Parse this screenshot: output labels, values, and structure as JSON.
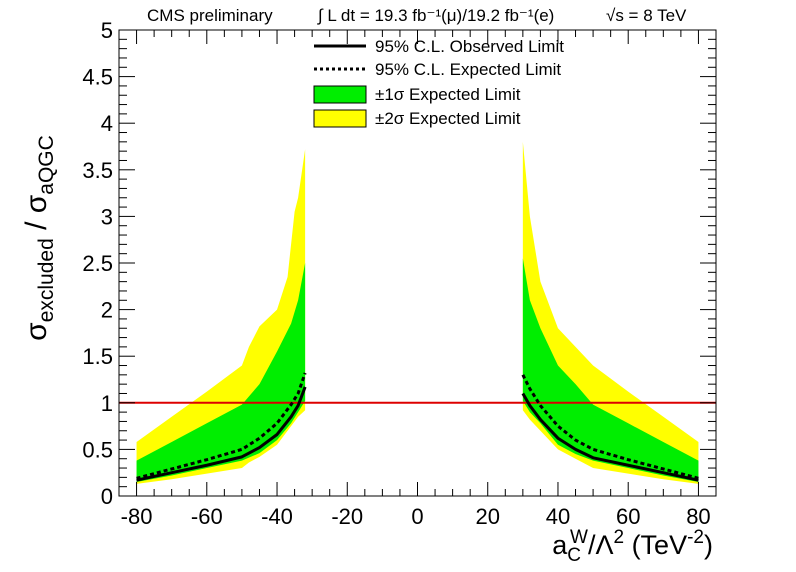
{
  "header": {
    "experiment": "CMS preliminary",
    "lumi": "∫ L dt = 19.3 fb⁻¹(μ)/19.2 fb⁻¹(e)",
    "energy": "√s = 8 TeV"
  },
  "colors": {
    "band1sigma": "#00ee00",
    "band2sigma": "#ffff00",
    "reference_line": "#dd0000",
    "limit_lines": "#000000"
  },
  "chart_data": {
    "type": "line",
    "xlabel": "a_C^W/Λ² (TeV⁻²)",
    "ylabel": "σ_excluded / σ_aQGC",
    "xlim": [
      -85,
      85
    ],
    "ylim": [
      0,
      5
    ],
    "xticks": [
      -80,
      -60,
      -40,
      -20,
      0,
      20,
      40,
      60,
      80
    ],
    "xtick_labels": [
      "-80",
      "-60",
      "-40",
      "-20",
      "0",
      "20",
      "40",
      "60",
      "80"
    ],
    "yticks": [
      0,
      0.5,
      1,
      1.5,
      2,
      2.5,
      3,
      3.5,
      4,
      4.5,
      5
    ],
    "ytick_labels": [
      "0",
      "0.5",
      "1",
      "1.5",
      "2",
      "2.5",
      "3",
      "3.5",
      "4",
      "4.5",
      "5"
    ],
    "reference_y": 1,
    "legend_position": "top",
    "legend": [
      {
        "key": "observed",
        "label": "95% C.L. Observed Limit",
        "style": "solid-line"
      },
      {
        "key": "expected",
        "label": "95% C.L. Expected Limit",
        "style": "dotted-line"
      },
      {
        "key": "band1",
        "label": "±1σ Expected Limit",
        "style": "green-box"
      },
      {
        "key": "band2",
        "label": "±2σ Expected Limit",
        "style": "yellow-box"
      }
    ],
    "series": [
      {
        "key": "observed",
        "segments": [
          {
            "x": [
              -80,
              -70,
              -60,
              -50,
              -45,
              -40,
              -36,
              -34,
              -32
            ],
            "y": [
              0.17,
              0.25,
              0.33,
              0.42,
              0.52,
              0.66,
              0.85,
              0.97,
              1.17
            ]
          },
          {
            "x": [
              30,
              32,
              35,
              40,
              45,
              50,
              60,
              70,
              80
            ],
            "y": [
              1.1,
              0.97,
              0.82,
              0.62,
              0.5,
              0.41,
              0.33,
              0.25,
              0.17
            ]
          }
        ]
      },
      {
        "key": "expected",
        "segments": [
          {
            "x": [
              -80,
              -70,
              -60,
              -50,
              -45,
              -40,
              -36,
              -34,
              -32
            ],
            "y": [
              0.19,
              0.29,
              0.39,
              0.5,
              0.62,
              0.78,
              0.98,
              1.1,
              1.32
            ]
          },
          {
            "x": [
              30,
              32,
              35,
              40,
              45,
              50,
              60,
              70,
              80
            ],
            "y": [
              1.3,
              1.15,
              0.97,
              0.75,
              0.6,
              0.5,
              0.39,
              0.29,
              0.19
            ]
          }
        ]
      }
    ],
    "bands": [
      {
        "key": "band2",
        "segments": [
          {
            "x": [
              -80,
              -70,
              -60,
              -50,
              -48,
              -45,
              -40,
              -37,
              -35,
              -34,
              -32
            ],
            "low": [
              0.13,
              0.18,
              0.24,
              0.3,
              0.36,
              0.42,
              0.55,
              0.7,
              0.8,
              0.85,
              0.92
            ],
            "high": [
              0.58,
              0.85,
              1.12,
              1.4,
              1.6,
              1.82,
              2.0,
              2.35,
              3.05,
              3.2,
              3.72
            ]
          },
          {
            "x": [
              30,
              32,
              35,
              40,
              45,
              50,
              60,
              70,
              80
            ],
            "low": [
              0.92,
              0.82,
              0.7,
              0.5,
              0.4,
              0.3,
              0.24,
              0.18,
              0.13
            ],
            "high": [
              3.8,
              3.0,
              2.3,
              1.8,
              1.6,
              1.4,
              1.12,
              0.85,
              0.58
            ]
          }
        ]
      },
      {
        "key": "band1",
        "segments": [
          {
            "x": [
              -80,
              -70,
              -60,
              -50,
              -45,
              -40,
              -36,
              -34,
              -32
            ],
            "low": [
              0.15,
              0.22,
              0.3,
              0.38,
              0.46,
              0.6,
              0.78,
              0.9,
              1.02
            ],
            "high": [
              0.38,
              0.58,
              0.78,
              0.98,
              1.2,
              1.55,
              1.85,
              2.1,
              2.5
            ]
          },
          {
            "x": [
              30,
              32,
              35,
              40,
              45,
              50,
              60,
              70,
              80
            ],
            "low": [
              1.02,
              0.9,
              0.78,
              0.55,
              0.45,
              0.38,
              0.3,
              0.22,
              0.15
            ],
            "high": [
              2.55,
              2.1,
              1.8,
              1.4,
              1.2,
              0.98,
              0.78,
              0.58,
              0.38
            ]
          }
        ]
      }
    ]
  }
}
